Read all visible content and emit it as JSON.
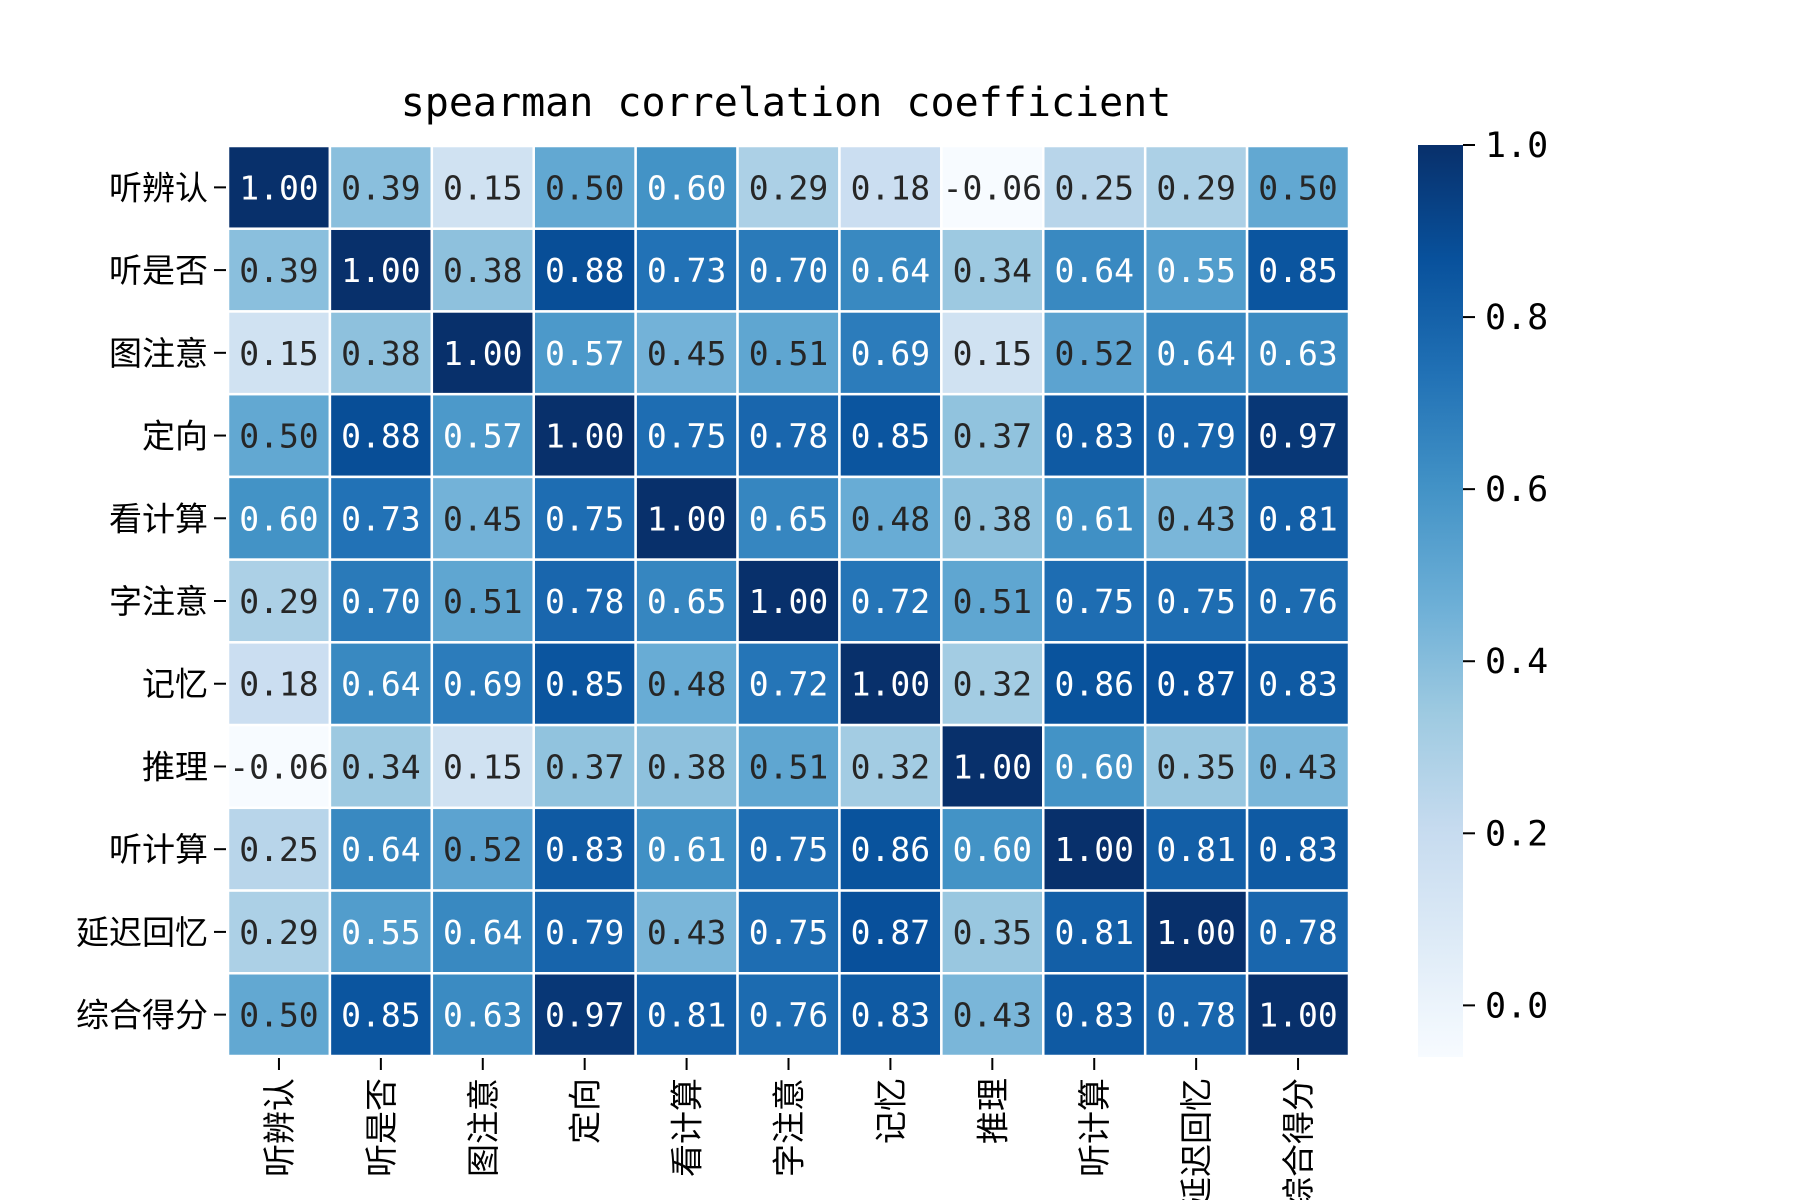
{
  "chart_data": {
    "type": "heatmap",
    "title": "spearman correlation coefficient",
    "rows": [
      "听辨认",
      "听是否",
      "图注意",
      "定向",
      "看计算",
      "字注意",
      "记忆",
      "推理",
      "听计算",
      "延迟回忆",
      "综合得分"
    ],
    "columns": [
      "听辨认",
      "听是否",
      "图注意",
      "定向",
      "看计算",
      "字注意",
      "记忆",
      "推理",
      "听计算",
      "延迟回忆",
      "综合得分"
    ],
    "values": [
      [
        1.0,
        0.39,
        0.15,
        0.5,
        0.6,
        0.29,
        0.18,
        -0.06,
        0.25,
        0.29,
        0.5
      ],
      [
        0.39,
        1.0,
        0.38,
        0.88,
        0.73,
        0.7,
        0.64,
        0.34,
        0.64,
        0.55,
        0.85
      ],
      [
        0.15,
        0.38,
        1.0,
        0.57,
        0.45,
        0.51,
        0.69,
        0.15,
        0.52,
        0.64,
        0.63
      ],
      [
        0.5,
        0.88,
        0.57,
        1.0,
        0.75,
        0.78,
        0.85,
        0.37,
        0.83,
        0.79,
        0.97
      ],
      [
        0.6,
        0.73,
        0.45,
        0.75,
        1.0,
        0.65,
        0.48,
        0.38,
        0.61,
        0.43,
        0.81
      ],
      [
        0.29,
        0.7,
        0.51,
        0.78,
        0.65,
        1.0,
        0.72,
        0.51,
        0.75,
        0.75,
        0.76
      ],
      [
        0.18,
        0.64,
        0.69,
        0.85,
        0.48,
        0.72,
        1.0,
        0.32,
        0.86,
        0.87,
        0.83
      ],
      [
        -0.06,
        0.34,
        0.15,
        0.37,
        0.38,
        0.51,
        0.32,
        1.0,
        0.6,
        0.35,
        0.43
      ],
      [
        0.25,
        0.64,
        0.52,
        0.83,
        0.61,
        0.75,
        0.86,
        0.6,
        1.0,
        0.81,
        0.83
      ],
      [
        0.29,
        0.55,
        0.64,
        0.79,
        0.43,
        0.75,
        0.87,
        0.35,
        0.81,
        1.0,
        0.78
      ],
      [
        0.5,
        0.85,
        0.63,
        0.97,
        0.81,
        0.76,
        0.83,
        0.43,
        0.83,
        0.78,
        1.0
      ]
    ],
    "colormap": "Blues",
    "value_range": [
      -0.06,
      1.0
    ],
    "annotation_format": "0.00",
    "colorbar_ticks": [
      0.0,
      0.2,
      0.4,
      0.6,
      0.8,
      1.0
    ],
    "colorbar_tick_labels": [
      "0.0",
      "0.2",
      "0.4",
      "0.6",
      "0.8",
      "1.0"
    ],
    "cell_border_color": "#ffffff",
    "colormap_stops": [
      "#f7fbff",
      "#deebf7",
      "#c6dbef",
      "#9ecae1",
      "#6baed6",
      "#4292c6",
      "#2171b5",
      "#08519c",
      "#08306b"
    ]
  }
}
